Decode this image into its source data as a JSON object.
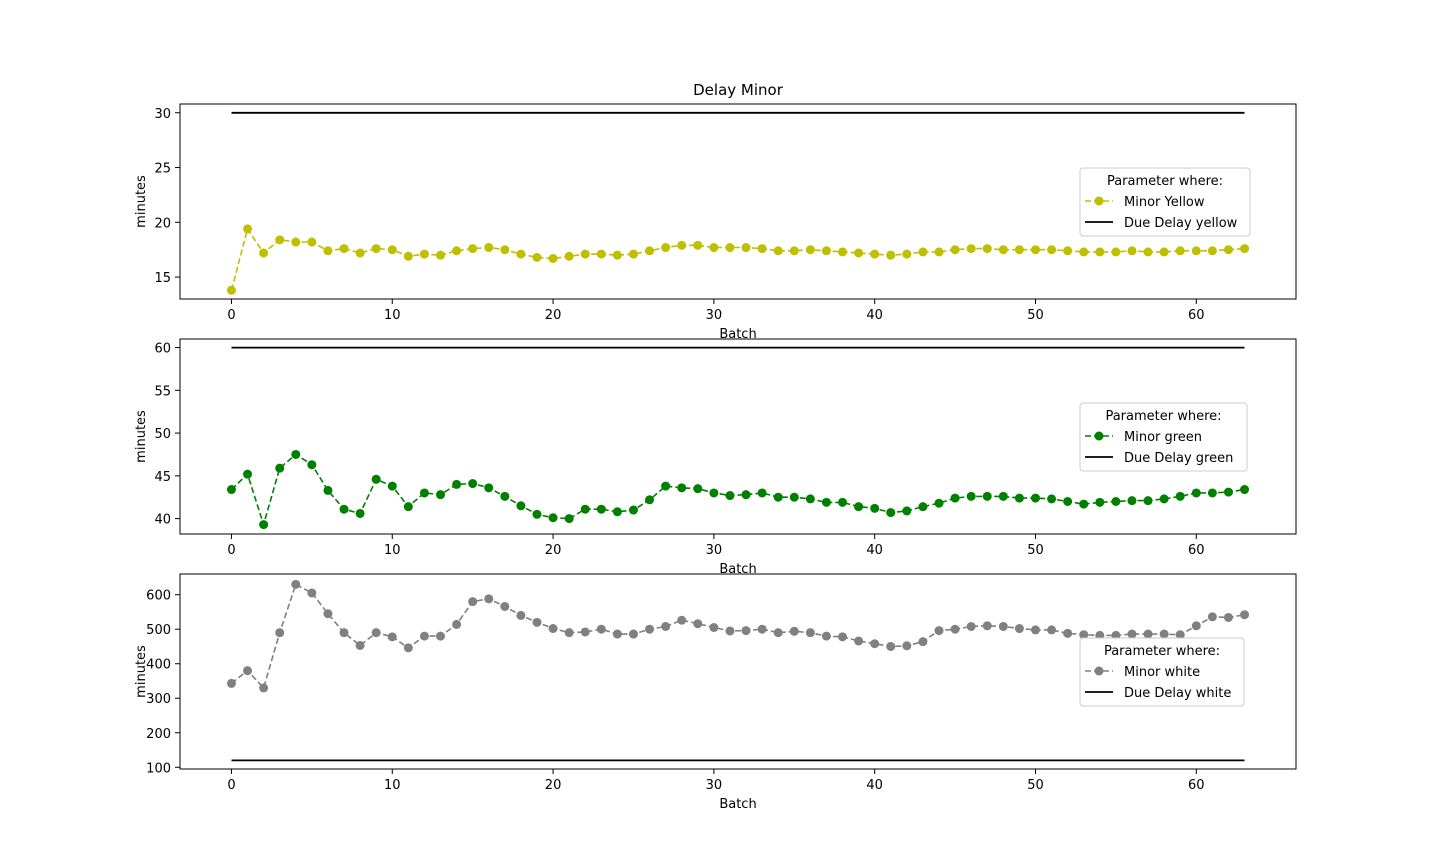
{
  "figure_title": "Delay Minor",
  "chart_data": [
    {
      "type": "line",
      "title": "Delay Minor",
      "xlabel": "Batch",
      "ylabel": "minutes",
      "xlim": [
        -3.2,
        66.2
      ],
      "ylim": [
        13.0,
        30.8
      ],
      "xticks": [
        0,
        10,
        20,
        30,
        40,
        50,
        60
      ],
      "yticks": [
        15,
        20,
        25,
        30
      ],
      "legend_title": "Parameter where:",
      "legend_position": "center-right",
      "series": [
        {
          "name": "Minor Yellow",
          "color": "#bfbf00",
          "style": "dashed-markers",
          "x": [
            0,
            1,
            2,
            3,
            4,
            5,
            6,
            7,
            8,
            9,
            10,
            11,
            12,
            13,
            14,
            15,
            16,
            17,
            18,
            19,
            20,
            21,
            22,
            23,
            24,
            25,
            26,
            27,
            28,
            29,
            30,
            31,
            32,
            33,
            34,
            35,
            36,
            37,
            38,
            39,
            40,
            41,
            42,
            43,
            44,
            45,
            46,
            47,
            48,
            49,
            50,
            51,
            52,
            53,
            54,
            55,
            56,
            57,
            58,
            59,
            60,
            61,
            62,
            63
          ],
          "y": [
            13.8,
            19.4,
            17.2,
            18.4,
            18.2,
            18.2,
            17.4,
            17.6,
            17.2,
            17.6,
            17.5,
            16.9,
            17.1,
            17.0,
            17.4,
            17.6,
            17.7,
            17.5,
            17.1,
            16.8,
            16.7,
            16.9,
            17.1,
            17.1,
            17.0,
            17.1,
            17.4,
            17.7,
            17.9,
            17.9,
            17.7,
            17.7,
            17.7,
            17.6,
            17.4,
            17.4,
            17.5,
            17.4,
            17.3,
            17.2,
            17.1,
            17.0,
            17.1,
            17.3,
            17.3,
            17.5,
            17.6,
            17.6,
            17.5,
            17.5,
            17.5,
            17.5,
            17.4,
            17.3,
            17.3,
            17.3,
            17.4,
            17.3,
            17.3,
            17.4,
            17.4,
            17.4,
            17.5,
            17.6
          ]
        },
        {
          "name": "Due Delay yellow",
          "color": "#000000",
          "style": "solid",
          "x": [
            0,
            63
          ],
          "y": [
            30,
            30
          ]
        }
      ]
    },
    {
      "type": "line",
      "title": "",
      "xlabel": "Batch",
      "ylabel": "minutes",
      "xlim": [
        -3.2,
        66.2
      ],
      "ylim": [
        38.2,
        61.0
      ],
      "xticks": [
        0,
        10,
        20,
        30,
        40,
        50,
        60
      ],
      "yticks": [
        40,
        45,
        50,
        55,
        60
      ],
      "legend_title": "Parameter where:",
      "legend_position": "center-right",
      "series": [
        {
          "name": "Minor green",
          "color": "#008000",
          "style": "dashed-markers",
          "x": [
            0,
            1,
            2,
            3,
            4,
            5,
            6,
            7,
            8,
            9,
            10,
            11,
            12,
            13,
            14,
            15,
            16,
            17,
            18,
            19,
            20,
            21,
            22,
            23,
            24,
            25,
            26,
            27,
            28,
            29,
            30,
            31,
            32,
            33,
            34,
            35,
            36,
            37,
            38,
            39,
            40,
            41,
            42,
            43,
            44,
            45,
            46,
            47,
            48,
            49,
            50,
            51,
            52,
            53,
            54,
            55,
            56,
            57,
            58,
            59,
            60,
            61,
            62,
            63
          ],
          "y": [
            43.4,
            45.2,
            39.3,
            45.9,
            47.5,
            46.3,
            43.3,
            41.1,
            40.6,
            44.6,
            43.8,
            41.4,
            43.0,
            42.8,
            44.0,
            44.1,
            43.6,
            42.6,
            41.5,
            40.5,
            40.1,
            40.0,
            41.1,
            41.1,
            40.8,
            41.0,
            42.2,
            43.8,
            43.6,
            43.5,
            43.0,
            42.7,
            42.8,
            43.0,
            42.5,
            42.5,
            42.3,
            41.9,
            41.9,
            41.4,
            41.2,
            40.7,
            40.9,
            41.4,
            41.8,
            42.4,
            42.6,
            42.6,
            42.6,
            42.4,
            42.4,
            42.3,
            42.0,
            41.7,
            41.9,
            42.0,
            42.1,
            42.1,
            42.3,
            42.6,
            43.0,
            43.0,
            43.1,
            43.4
          ]
        },
        {
          "name": "Due Delay green",
          "color": "#000000",
          "style": "solid",
          "x": [
            0,
            63
          ],
          "y": [
            60,
            60
          ]
        }
      ]
    },
    {
      "type": "line",
      "title": "",
      "xlabel": "Batch",
      "ylabel": "minutes",
      "xlim": [
        -3.2,
        66.2
      ],
      "ylim": [
        95,
        660
      ],
      "xticks": [
        0,
        10,
        20,
        30,
        40,
        50,
        60
      ],
      "yticks": [
        100,
        200,
        300,
        400,
        500,
        600
      ],
      "legend_title": "Parameter where:",
      "legend_position": "center-right",
      "series": [
        {
          "name": "Minor white",
          "color": "#808080",
          "style": "dashed-markers",
          "x": [
            0,
            1,
            2,
            3,
            4,
            5,
            6,
            7,
            8,
            9,
            10,
            11,
            12,
            13,
            14,
            15,
            16,
            17,
            18,
            19,
            20,
            21,
            22,
            23,
            24,
            25,
            26,
            27,
            28,
            29,
            30,
            31,
            32,
            33,
            34,
            35,
            36,
            37,
            38,
            39,
            40,
            41,
            42,
            43,
            44,
            45,
            46,
            47,
            48,
            49,
            50,
            51,
            52,
            53,
            54,
            55,
            56,
            57,
            58,
            59,
            60,
            61,
            62,
            63
          ],
          "y": [
            343,
            380,
            330,
            490,
            630,
            605,
            545,
            490,
            453,
            490,
            478,
            446,
            480,
            480,
            514,
            580,
            588,
            566,
            540,
            520,
            502,
            490,
            492,
            500,
            486,
            486,
            500,
            508,
            526,
            516,
            505,
            495,
            496,
            500,
            490,
            494,
            490,
            480,
            478,
            466,
            458,
            450,
            452,
            464,
            496,
            500,
            508,
            510,
            508,
            502,
            498,
            498,
            488,
            484,
            482,
            482,
            486,
            486,
            486,
            484,
            510,
            536,
            534,
            542
          ]
        },
        {
          "name": "Due Delay white",
          "color": "#000000",
          "style": "solid",
          "x": [
            0,
            63
          ],
          "y": [
            120,
            120
          ]
        }
      ]
    }
  ]
}
